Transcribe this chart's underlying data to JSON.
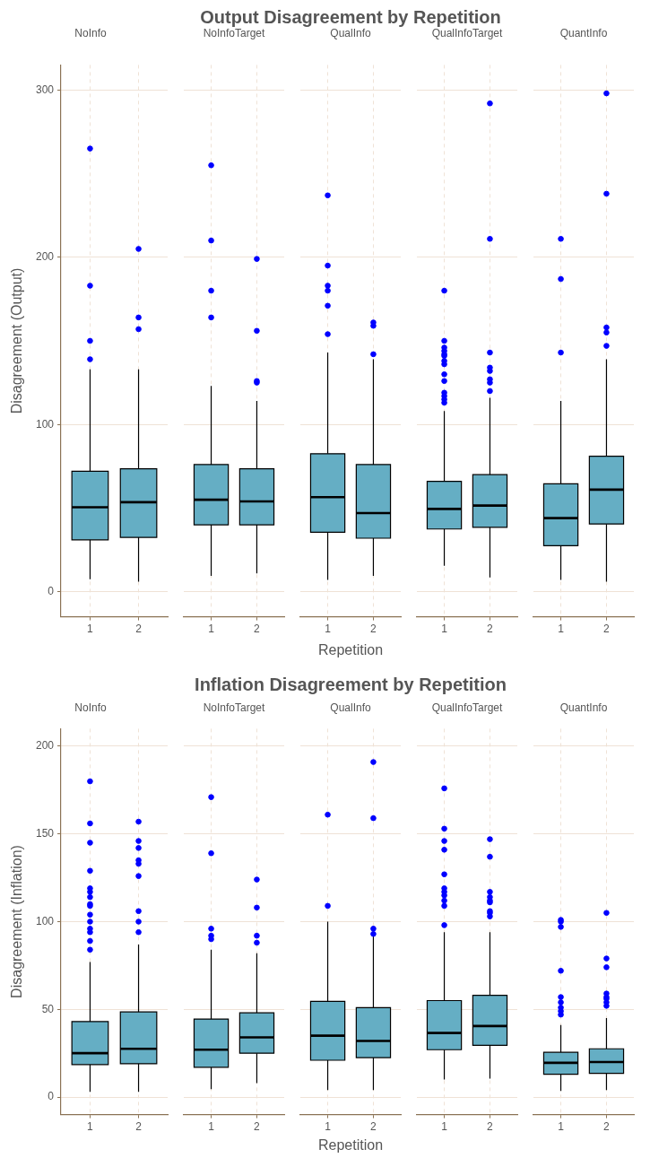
{
  "chart_data": [
    {
      "type": "box",
      "title": "NoInfo",
      "annotations": [
        "Output Disagreement by Repetition"
      ],
      "ylabel": "Disagreement (Output)",
      "categories": [
        "1",
        "2"
      ],
      "color": "#65aec4",
      "ylim": [
        -15,
        315
      ],
      "yticks": [
        0,
        100,
        200,
        300
      ],
      "grid": true,
      "boxes": [
        {
          "low": 7.5,
          "q1": 31,
          "median": 50.5,
          "q3": 72,
          "high": 133,
          "outliers": [
            265,
            183,
            150,
            139
          ]
        },
        {
          "low": 6,
          "q1": 32.5,
          "median": 53.5,
          "q3": 73.5,
          "high": 133,
          "outliers": [
            205,
            164,
            157
          ]
        }
      ]
    },
    {
      "type": "box",
      "title": "NoInfoTarget",
      "categories": [
        "1",
        "2"
      ],
      "color": "#65aec4",
      "ylim": [
        -15,
        315
      ],
      "yticks": [
        0,
        100,
        200,
        300
      ],
      "grid": true,
      "tick_labels": "x",
      "boxes": [
        {
          "low": 9.5,
          "q1": 40,
          "median": 55,
          "q3": 76,
          "high": 123,
          "outliers": [
            255,
            210,
            180,
            164
          ]
        },
        {
          "low": 11,
          "q1": 40,
          "median": 54,
          "q3": 73.5,
          "high": 114,
          "outliers": [
            199,
            156,
            126,
            125
          ]
        }
      ]
    },
    {
      "type": "box",
      "title": "QualInfo",
      "xlabel": "Repetition",
      "categories": [
        "1",
        "2"
      ],
      "color": "#65aec4",
      "ylim": [
        -15,
        315
      ],
      "yticks": [
        0,
        100,
        200,
        300
      ],
      "grid": true,
      "tick_labels": "x",
      "boxes": [
        {
          "low": 7,
          "q1": 35.5,
          "median": 56.5,
          "q3": 82.5,
          "high": 143,
          "outliers": [
            237,
            195,
            183,
            180,
            171,
            154
          ]
        },
        {
          "low": 9.5,
          "q1": 32,
          "median": 47,
          "q3": 76,
          "high": 139,
          "outliers": [
            161,
            159,
            142
          ]
        }
      ]
    },
    {
      "type": "box",
      "title": "QualInfoTarget",
      "categories": [
        "1",
        "2"
      ],
      "color": "#65aec4",
      "ylim": [
        -15,
        315
      ],
      "yticks": [
        0,
        100,
        200,
        300
      ],
      "grid": true,
      "tick_labels": "x",
      "boxes": [
        {
          "low": 15.5,
          "q1": 37.5,
          "median": 49.5,
          "q3": 66,
          "high": 108,
          "outliers": [
            180,
            150,
            146,
            144,
            142,
            141,
            138,
            136,
            130,
            126,
            119,
            117,
            115,
            113
          ]
        },
        {
          "low": 8.5,
          "q1": 38.5,
          "median": 51.5,
          "q3": 70,
          "high": 116,
          "outliers": [
            292,
            211,
            143,
            134,
            132,
            127,
            125,
            120
          ]
        }
      ]
    },
    {
      "type": "box",
      "title": "QuantInfo",
      "categories": [
        "1",
        "2"
      ],
      "color": "#65aec4",
      "ylim": [
        -15,
        315
      ],
      "yticks": [
        0,
        100,
        200,
        300
      ],
      "grid": true,
      "tick_labels": "x",
      "boxes": [
        {
          "low": 7,
          "q1": 27.5,
          "median": 44,
          "q3": 64.5,
          "high": 114,
          "outliers": [
            211,
            187,
            143
          ]
        },
        {
          "low": 6,
          "q1": 40.5,
          "median": 61,
          "q3": 81,
          "high": 139,
          "outliers": [
            298,
            238,
            158,
            155,
            147
          ]
        }
      ]
    },
    {
      "type": "box",
      "title": "NoInfo",
      "annotations": [
        "Inflation Disagreement by Repetition"
      ],
      "ylabel": "Disagreement (Inflation)",
      "categories": [
        "1",
        "2"
      ],
      "color": "#65aec4",
      "ylim": [
        -10,
        210
      ],
      "yticks": [
        0,
        50,
        100,
        150,
        200
      ],
      "grid": true,
      "boxes": [
        {
          "low": 3,
          "q1": 18.5,
          "median": 25,
          "q3": 43,
          "high": 77,
          "outliers": [
            180,
            156,
            145,
            129,
            119,
            117,
            114,
            110,
            109,
            104,
            100,
            96,
            94,
            89,
            84
          ]
        },
        {
          "low": 3,
          "q1": 19,
          "median": 27.5,
          "q3": 48.5,
          "high": 87,
          "outliers": [
            157,
            146,
            142,
            135,
            133,
            126,
            106,
            100,
            94
          ]
        }
      ]
    },
    {
      "type": "box",
      "title": "NoInfoTarget",
      "categories": [
        "1",
        "2"
      ],
      "color": "#65aec4",
      "ylim": [
        -10,
        210
      ],
      "yticks": [
        0,
        50,
        100,
        150,
        200
      ],
      "grid": true,
      "tick_labels": "x",
      "boxes": [
        {
          "low": 4.5,
          "q1": 17,
          "median": 27,
          "q3": 44.5,
          "high": 84,
          "outliers": [
            171,
            139,
            96,
            92,
            90
          ]
        },
        {
          "low": 8,
          "q1": 25,
          "median": 34,
          "q3": 48,
          "high": 82,
          "outliers": [
            124,
            108,
            92,
            88
          ]
        }
      ]
    },
    {
      "type": "box",
      "title": "QualInfo",
      "xlabel": "Repetition",
      "categories": [
        "1",
        "2"
      ],
      "color": "#65aec4",
      "ylim": [
        -10,
        210
      ],
      "yticks": [
        0,
        50,
        100,
        150,
        200
      ],
      "grid": true,
      "tick_labels": "x",
      "boxes": [
        {
          "low": 4,
          "q1": 21,
          "median": 35,
          "q3": 54.5,
          "high": 100,
          "outliers": [
            161,
            109
          ]
        },
        {
          "low": 4,
          "q1": 22.5,
          "median": 32,
          "q3": 51,
          "high": 92,
          "outliers": [
            191,
            159,
            96,
            93
          ]
        }
      ]
    },
    {
      "type": "box",
      "title": "QualInfoTarget",
      "categories": [
        "1",
        "2"
      ],
      "color": "#65aec4",
      "ylim": [
        -10,
        210
      ],
      "yticks": [
        0,
        50,
        100,
        150,
        200
      ],
      "grid": true,
      "tick_labels": "x",
      "boxes": [
        {
          "low": 10,
          "q1": 27,
          "median": 36.5,
          "q3": 55,
          "high": 94,
          "outliers": [
            176,
            153,
            146,
            141,
            127,
            119,
            117,
            115,
            112,
            109,
            98
          ]
        },
        {
          "low": 10.5,
          "q1": 29.5,
          "median": 40.5,
          "q3": 58,
          "high": 94,
          "outliers": [
            147,
            137,
            117,
            114,
            112,
            111,
            106,
            105,
            103
          ]
        }
      ]
    },
    {
      "type": "box",
      "title": "QuantInfo",
      "categories": [
        "1",
        "2"
      ],
      "color": "#65aec4",
      "ylim": [
        -10,
        210
      ],
      "yticks": [
        0,
        50,
        100,
        150,
        200
      ],
      "grid": true,
      "tick_labels": "x",
      "boxes": [
        {
          "low": 3.5,
          "q1": 13,
          "median": 19.5,
          "q3": 25.5,
          "high": 41,
          "outliers": [
            101,
            100,
            97,
            72,
            57,
            54,
            51,
            49,
            47
          ]
        },
        {
          "low": 4,
          "q1": 13.5,
          "median": 20,
          "q3": 27.5,
          "high": 45,
          "outliers": [
            105,
            79,
            74,
            59,
            57,
            56,
            54,
            52
          ]
        }
      ]
    }
  ]
}
